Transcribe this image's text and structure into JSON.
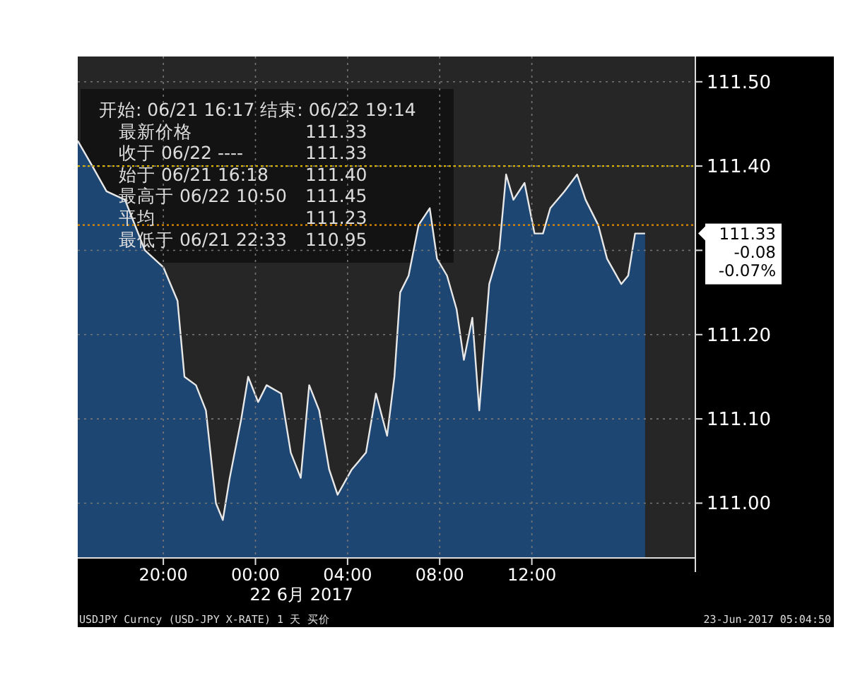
{
  "chart_data": {
    "type": "area",
    "xlabel": "22 6月 2017",
    "x": [
      "2017-06-21T16:17",
      "2017-06-21T16:55",
      "2017-06-21T17:32",
      "2017-06-21T18:20",
      "2017-06-21T19:12",
      "2017-06-21T20:00",
      "2017-06-21T20:37",
      "2017-06-21T20:55",
      "2017-06-21T21:25",
      "2017-06-21T21:51",
      "2017-06-21T22:17",
      "2017-06-21T22:35",
      "2017-06-21T22:53",
      "2017-06-21T23:23",
      "2017-06-21T23:41",
      "2017-06-22T00:07",
      "2017-06-22T00:29",
      "2017-06-22T01:07",
      "2017-06-22T01:32",
      "2017-06-22T01:58",
      "2017-06-22T02:20",
      "2017-06-22T02:46",
      "2017-06-22T03:12",
      "2017-06-22T03:34",
      "2017-06-22T04:11",
      "2017-06-22T04:48",
      "2017-06-22T05:14",
      "2017-06-22T05:43",
      "2017-06-22T06:02",
      "2017-06-22T06:17",
      "2017-06-22T06:39",
      "2017-06-22T07:05",
      "2017-06-22T07:34",
      "2017-06-22T07:53",
      "2017-06-22T08:19",
      "2017-06-22T08:44",
      "2017-06-22T09:03",
      "2017-06-22T09:25",
      "2017-06-22T09:43",
      "2017-06-22T10:09",
      "2017-06-22T10:35",
      "2017-06-22T10:53",
      "2017-06-22T11:12",
      "2017-06-22T11:41",
      "2017-06-22T12:07",
      "2017-06-22T12:29",
      "2017-06-22T12:48",
      "2017-06-22T13:25",
      "2017-06-22T13:58",
      "2017-06-22T14:20",
      "2017-06-22T14:53",
      "2017-06-22T15:16",
      "2017-06-22T15:53",
      "2017-06-22T16:11",
      "2017-06-22T16:29",
      "2017-06-22T16:55"
    ],
    "series": [
      {
        "color": "#1d4673",
        "values": [
          111.43,
          111.4,
          111.37,
          111.36,
          111.3,
          111.28,
          111.24,
          111.15,
          111.14,
          111.11,
          111.0,
          110.98,
          111.03,
          111.1,
          111.15,
          111.12,
          111.14,
          111.13,
          111.06,
          111.03,
          111.14,
          111.11,
          111.04,
          111.01,
          111.04,
          111.06,
          111.13,
          111.08,
          111.15,
          111.25,
          111.27,
          111.33,
          111.35,
          111.29,
          111.27,
          111.23,
          111.17,
          111.22,
          111.11,
          111.26,
          111.3,
          111.39,
          111.36,
          111.38,
          111.32,
          111.32,
          111.35,
          111.37,
          111.39,
          111.36,
          111.33,
          111.29,
          111.26,
          111.27,
          111.32,
          111.32
        ]
      }
    ],
    "xlim": [
      "2017-06-21T16:17",
      "2017-06-22T19:06"
    ],
    "ylim": [
      110.935,
      111.53
    ],
    "xticks": [
      {
        "value": "2017-06-21T20:00",
        "label": "20:00"
      },
      {
        "value": "2017-06-22T00:00",
        "label": "00:00"
      },
      {
        "value": "2017-06-22T04:00",
        "label": "04:00"
      },
      {
        "value": "2017-06-22T08:00",
        "label": "08:00"
      },
      {
        "value": "2017-06-22T12:00",
        "label": "12:00"
      }
    ],
    "yticks": [
      {
        "value": 111.0,
        "label": "111.00"
      },
      {
        "value": 111.1,
        "label": "111.10"
      },
      {
        "value": 111.2,
        "label": "111.20"
      },
      {
        "value": 111.3,
        "label": null
      },
      {
        "value": 111.4,
        "label": "111.40"
      },
      {
        "value": 111.5,
        "label": "111.50"
      }
    ],
    "grid": true,
    "ref_lines": [
      {
        "axis": "y",
        "value": 111.4,
        "color": "#d9b400",
        "line_style": "dotted"
      },
      {
        "axis": "y",
        "value": 111.33,
        "color": "#e08a00",
        "line_style": "dotted"
      }
    ],
    "annotations": [
      "开始: 06/21 16:17 结束: 06/22 19:14",
      "最新价格 111.33",
      "收于 06/22 ---- 111.33",
      "始于 06/21 16:18 111.40",
      "最高于 06/22 10:50 111.45",
      "平均 111.23",
      "最低于 06/21 22:33 110.95",
      "111.33\n-0.08\n-0.07%",
      "USDJPY Curncy (USD-JPY X-RATE) 1 天 买价",
      "23-Jun-2017 05:04:50"
    ]
  }
}
